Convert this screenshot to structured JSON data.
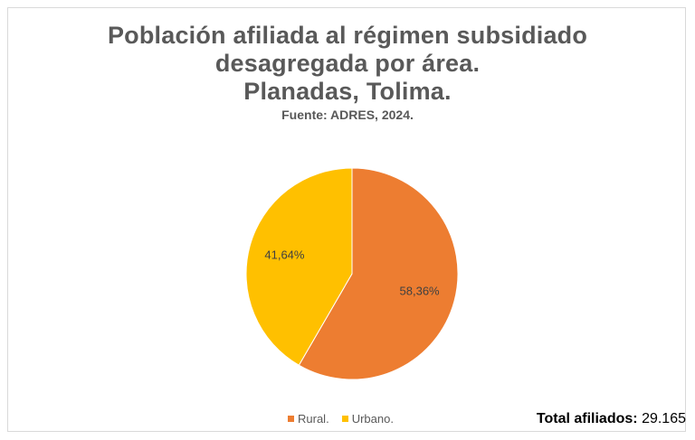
{
  "chart_data": {
    "type": "pie",
    "title": [
      "Población afiliada al régimen subsidiado",
      "desagregada por área.",
      "Planadas, Tolima."
    ],
    "subtitle": "Fuente: ADRES, 2024.",
    "categories": [
      "Rural.",
      "Urbano."
    ],
    "values": [
      58.36,
      41.64
    ],
    "data_labels": [
      "58,36%",
      "41,64%"
    ],
    "colors": [
      "#ED7D31",
      "#FFC000"
    ],
    "legend_position": "bottom"
  },
  "footer": {
    "total_label": "Total afiliados:",
    "total_value": "29.165"
  }
}
